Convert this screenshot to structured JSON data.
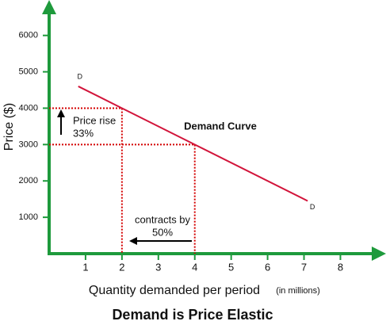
{
  "chart_data": {
    "type": "line",
    "title": "Demand is Price Elastic",
    "xlabel": "Quantity demanded per period",
    "xlabel_note": "(in millions)",
    "ylabel": "Price ($)",
    "x": [
      0.8,
      2,
      4,
      7.1
    ],
    "values": [
      4600,
      4000,
      3000,
      1450
    ],
    "color": "#d2143a",
    "guide_color": "#d40000",
    "axis_color": "#1e9a3c",
    "xlim": [
      0,
      9.1
    ],
    "ylim": [
      0,
      6800
    ],
    "xticks": [
      1,
      2,
      3,
      4,
      5,
      6,
      7,
      8
    ],
    "yticks": [
      1000,
      2000,
      3000,
      4000,
      5000,
      6000
    ],
    "endpoint_labels": [
      "D",
      "D"
    ],
    "curve_label": "Demand Curve",
    "price_note": [
      "Price rise",
      "33%"
    ],
    "quantity_note": [
      "contracts by",
      "50%"
    ]
  }
}
